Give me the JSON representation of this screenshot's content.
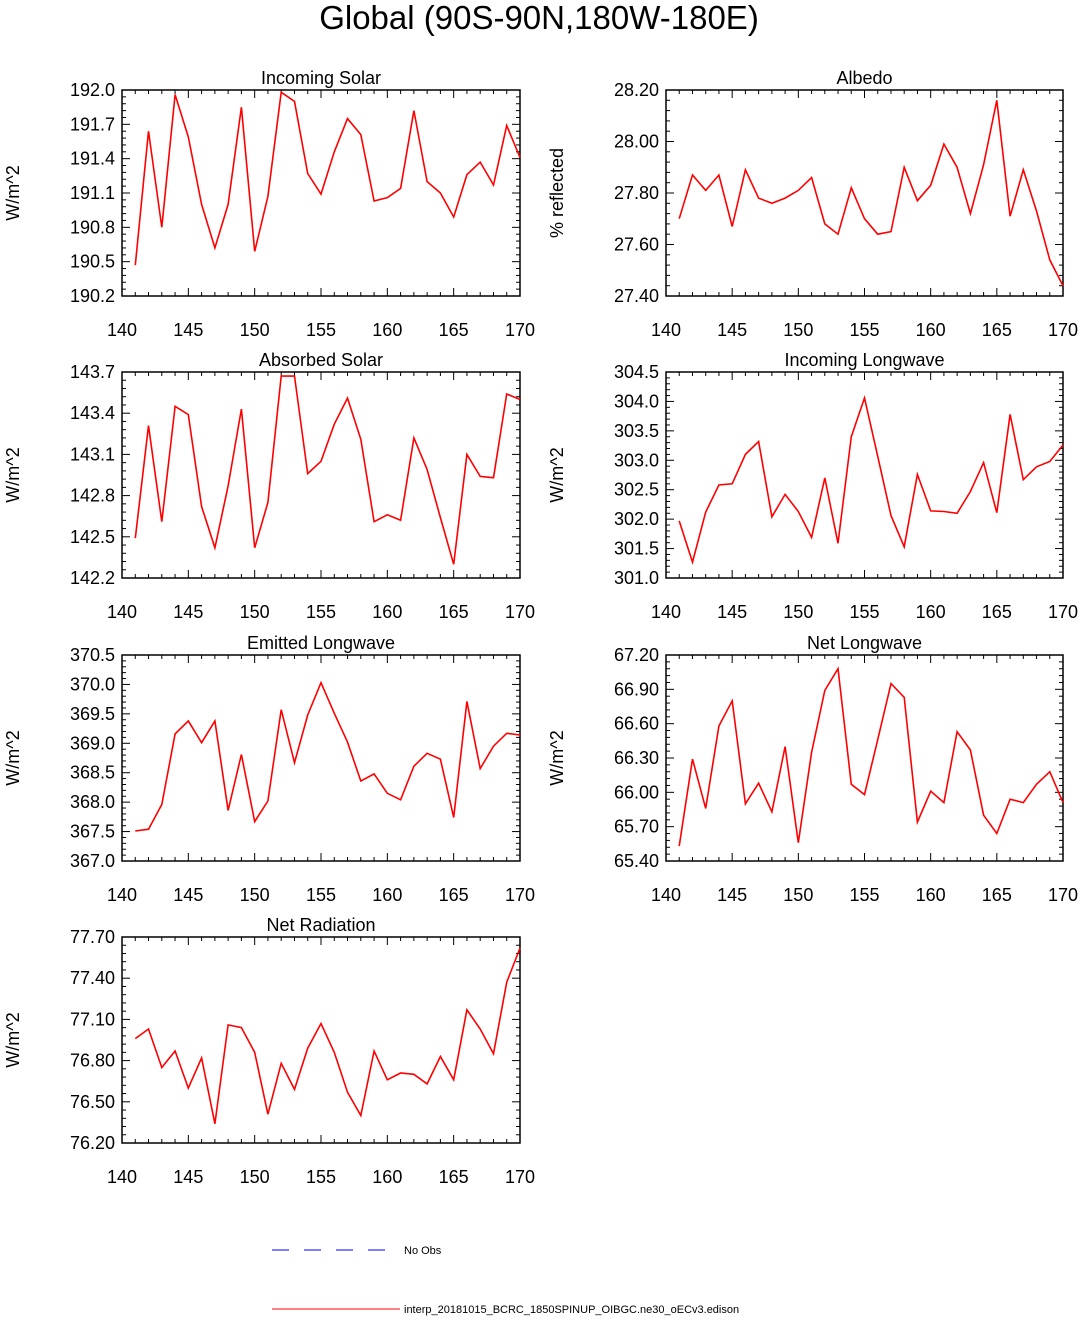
{
  "title": "Global (90S-90N,180W-180E)",
  "colors": {
    "model": "#ff0000",
    "obs": "#0000ff",
    "axis": "#000000"
  },
  "legend": {
    "obs_label": "No Obs",
    "model_label": "interp_20181015_BCRC_1850SPINUP_OIBGC.ne30_oECv3.edison"
  },
  "chart_data": [
    {
      "type": "line",
      "title": "Incoming Solar",
      "ylabel": "W/m^2",
      "xlim": [
        140,
        170
      ],
      "ylim": [
        190.2,
        192.0
      ],
      "xticks": [
        "140",
        "145",
        "150",
        "155",
        "160",
        "165",
        "170"
      ],
      "yticks": [
        "190.2",
        "190.5",
        "190.8",
        "191.1",
        "191.4",
        "191.7",
        "192.0"
      ],
      "x": [
        141,
        142,
        143,
        144,
        145,
        146,
        147,
        148,
        149,
        150,
        151,
        152,
        153,
        154,
        155,
        156,
        157,
        158,
        159,
        160,
        161,
        162,
        163,
        164,
        165,
        166,
        167,
        168,
        169,
        170
      ],
      "series": [
        {
          "values": [
            190.47,
            191.64,
            190.8,
            191.96,
            191.59,
            191.0,
            190.62,
            191.0,
            191.85,
            190.59,
            191.07,
            191.98,
            191.9,
            191.27,
            191.09,
            191.46,
            191.75,
            191.61,
            191.03,
            191.06,
            191.14,
            191.82,
            191.2,
            191.1,
            190.89,
            191.26,
            191.37,
            191.17,
            191.69,
            191.41
          ]
        }
      ]
    },
    {
      "type": "line",
      "title": "Albedo",
      "ylabel": "% reflected",
      "xlim": [
        140,
        170
      ],
      "ylim": [
        27.4,
        28.2
      ],
      "xticks": [
        "140",
        "145",
        "150",
        "155",
        "160",
        "165",
        "170"
      ],
      "yticks": [
        "27.40",
        "27.60",
        "27.80",
        "28.00",
        "28.20"
      ],
      "x": [
        141,
        142,
        143,
        144,
        145,
        146,
        147,
        148,
        149,
        150,
        151,
        152,
        153,
        154,
        155,
        156,
        157,
        158,
        159,
        160,
        161,
        162,
        163,
        164,
        165,
        166,
        167,
        168,
        169,
        170
      ],
      "series": [
        {
          "values": [
            27.7,
            27.87,
            27.81,
            27.87,
            27.67,
            27.89,
            27.78,
            27.76,
            27.78,
            27.81,
            27.86,
            27.68,
            27.64,
            27.82,
            27.7,
            27.64,
            27.65,
            27.9,
            27.77,
            27.83,
            27.99,
            27.9,
            27.72,
            27.91,
            28.16,
            27.71,
            27.89,
            27.73,
            27.54,
            27.44
          ]
        }
      ]
    },
    {
      "type": "line",
      "title": "Absorbed Solar",
      "ylabel": "W/m^2",
      "xlim": [
        140,
        170
      ],
      "ylim": [
        142.2,
        143.7
      ],
      "xticks": [
        "140",
        "145",
        "150",
        "155",
        "160",
        "165",
        "170"
      ],
      "yticks": [
        "142.2",
        "142.5",
        "142.8",
        "143.1",
        "143.4",
        "143.7"
      ],
      "x": [
        141,
        142,
        143,
        144,
        145,
        146,
        147,
        148,
        149,
        150,
        151,
        152,
        153,
        154,
        155,
        156,
        157,
        158,
        159,
        160,
        161,
        162,
        163,
        164,
        165,
        166,
        167,
        168,
        169,
        170
      ],
      "series": [
        {
          "values": [
            142.49,
            143.31,
            142.61,
            143.45,
            143.39,
            142.72,
            142.42,
            142.87,
            143.43,
            142.42,
            142.75,
            143.67,
            143.67,
            142.96,
            143.05,
            143.32,
            143.51,
            143.21,
            142.61,
            142.66,
            142.62,
            143.22,
            142.99,
            142.64,
            142.3,
            143.1,
            142.94,
            142.93,
            143.54,
            143.5
          ]
        }
      ]
    },
    {
      "type": "line",
      "title": "Incoming Longwave",
      "ylabel": "W/m^2",
      "xlim": [
        140,
        170
      ],
      "ylim": [
        301.0,
        304.5
      ],
      "xticks": [
        "140",
        "145",
        "150",
        "155",
        "160",
        "165",
        "170"
      ],
      "yticks": [
        "301.0",
        "301.5",
        "302.0",
        "302.5",
        "303.0",
        "303.5",
        "304.0",
        "304.5"
      ],
      "x": [
        141,
        142,
        143,
        144,
        145,
        146,
        147,
        148,
        149,
        150,
        151,
        152,
        153,
        154,
        155,
        156,
        157,
        158,
        159,
        160,
        161,
        162,
        163,
        164,
        165,
        166,
        167,
        168,
        169,
        170
      ],
      "series": [
        {
          "values": [
            301.97,
            301.27,
            302.12,
            302.58,
            302.6,
            303.1,
            303.32,
            302.04,
            302.42,
            302.13,
            301.69,
            302.7,
            301.59,
            303.4,
            304.06,
            303.07,
            302.06,
            301.53,
            302.76,
            302.14,
            302.13,
            302.1,
            302.47,
            302.96,
            302.11,
            303.78,
            302.67,
            302.89,
            302.98,
            303.26
          ]
        }
      ]
    },
    {
      "type": "line",
      "title": "Emitted Longwave",
      "ylabel": "W/m^2",
      "xlim": [
        140,
        170
      ],
      "ylim": [
        367.0,
        370.5
      ],
      "xticks": [
        "140",
        "145",
        "150",
        "155",
        "160",
        "165",
        "170"
      ],
      "yticks": [
        "367.0",
        "367.5",
        "368.0",
        "368.5",
        "369.0",
        "369.5",
        "370.0",
        "370.5"
      ],
      "x": [
        141,
        142,
        143,
        144,
        145,
        146,
        147,
        148,
        149,
        150,
        151,
        152,
        153,
        154,
        155,
        156,
        157,
        158,
        159,
        160,
        161,
        162,
        163,
        164,
        165,
        166,
        167,
        168,
        169,
        170
      ],
      "series": [
        {
          "values": [
            367.51,
            367.54,
            367.96,
            369.16,
            369.38,
            369.01,
            369.38,
            367.86,
            368.81,
            367.67,
            368.02,
            369.57,
            368.67,
            369.48,
            370.03,
            369.51,
            369.02,
            368.36,
            368.48,
            368.15,
            368.04,
            368.61,
            368.83,
            368.73,
            367.74,
            369.71,
            368.57,
            368.95,
            369.17,
            369.14
          ]
        }
      ]
    },
    {
      "type": "line",
      "title": "Net Longwave",
      "ylabel": "W/m^2",
      "xlim": [
        140,
        170
      ],
      "ylim": [
        65.4,
        67.2
      ],
      "xticks": [
        "140",
        "145",
        "150",
        "155",
        "160",
        "165",
        "170"
      ],
      "yticks": [
        "65.40",
        "65.70",
        "66.00",
        "66.30",
        "66.60",
        "66.90",
        "67.20"
      ],
      "x": [
        141,
        142,
        143,
        144,
        145,
        146,
        147,
        148,
        149,
        150,
        151,
        152,
        153,
        154,
        155,
        156,
        157,
        158,
        159,
        160,
        161,
        162,
        163,
        164,
        165,
        166,
        167,
        168,
        169,
        170
      ],
      "series": [
        {
          "values": [
            65.53,
            66.29,
            65.86,
            66.58,
            66.8,
            65.9,
            66.08,
            65.83,
            66.4,
            65.56,
            66.35,
            66.89,
            67.08,
            66.07,
            65.98,
            66.46,
            66.95,
            66.83,
            65.74,
            66.01,
            65.91,
            66.53,
            66.37,
            65.8,
            65.64,
            65.94,
            65.91,
            66.07,
            66.18,
            65.91
          ]
        }
      ]
    },
    {
      "type": "line",
      "title": "Net Radiation",
      "ylabel": "W/m^2",
      "xlim": [
        140,
        170
      ],
      "ylim": [
        76.2,
        77.7
      ],
      "xticks": [
        "140",
        "145",
        "150",
        "155",
        "160",
        "165",
        "170"
      ],
      "yticks": [
        "76.20",
        "76.50",
        "76.80",
        "77.10",
        "77.40",
        "77.70"
      ],
      "x": [
        141,
        142,
        143,
        144,
        145,
        146,
        147,
        148,
        149,
        150,
        151,
        152,
        153,
        154,
        155,
        156,
        157,
        158,
        159,
        160,
        161,
        162,
        163,
        164,
        165,
        166,
        167,
        168,
        169,
        170
      ],
      "series": [
        {
          "values": [
            76.96,
            77.03,
            76.75,
            76.87,
            76.6,
            76.82,
            76.34,
            77.06,
            77.04,
            76.86,
            76.41,
            76.78,
            76.59,
            76.89,
            77.07,
            76.86,
            76.57,
            76.4,
            76.87,
            76.66,
            76.71,
            76.7,
            76.63,
            76.83,
            76.66,
            77.17,
            77.03,
            76.85,
            77.37,
            77.62
          ]
        }
      ]
    }
  ]
}
